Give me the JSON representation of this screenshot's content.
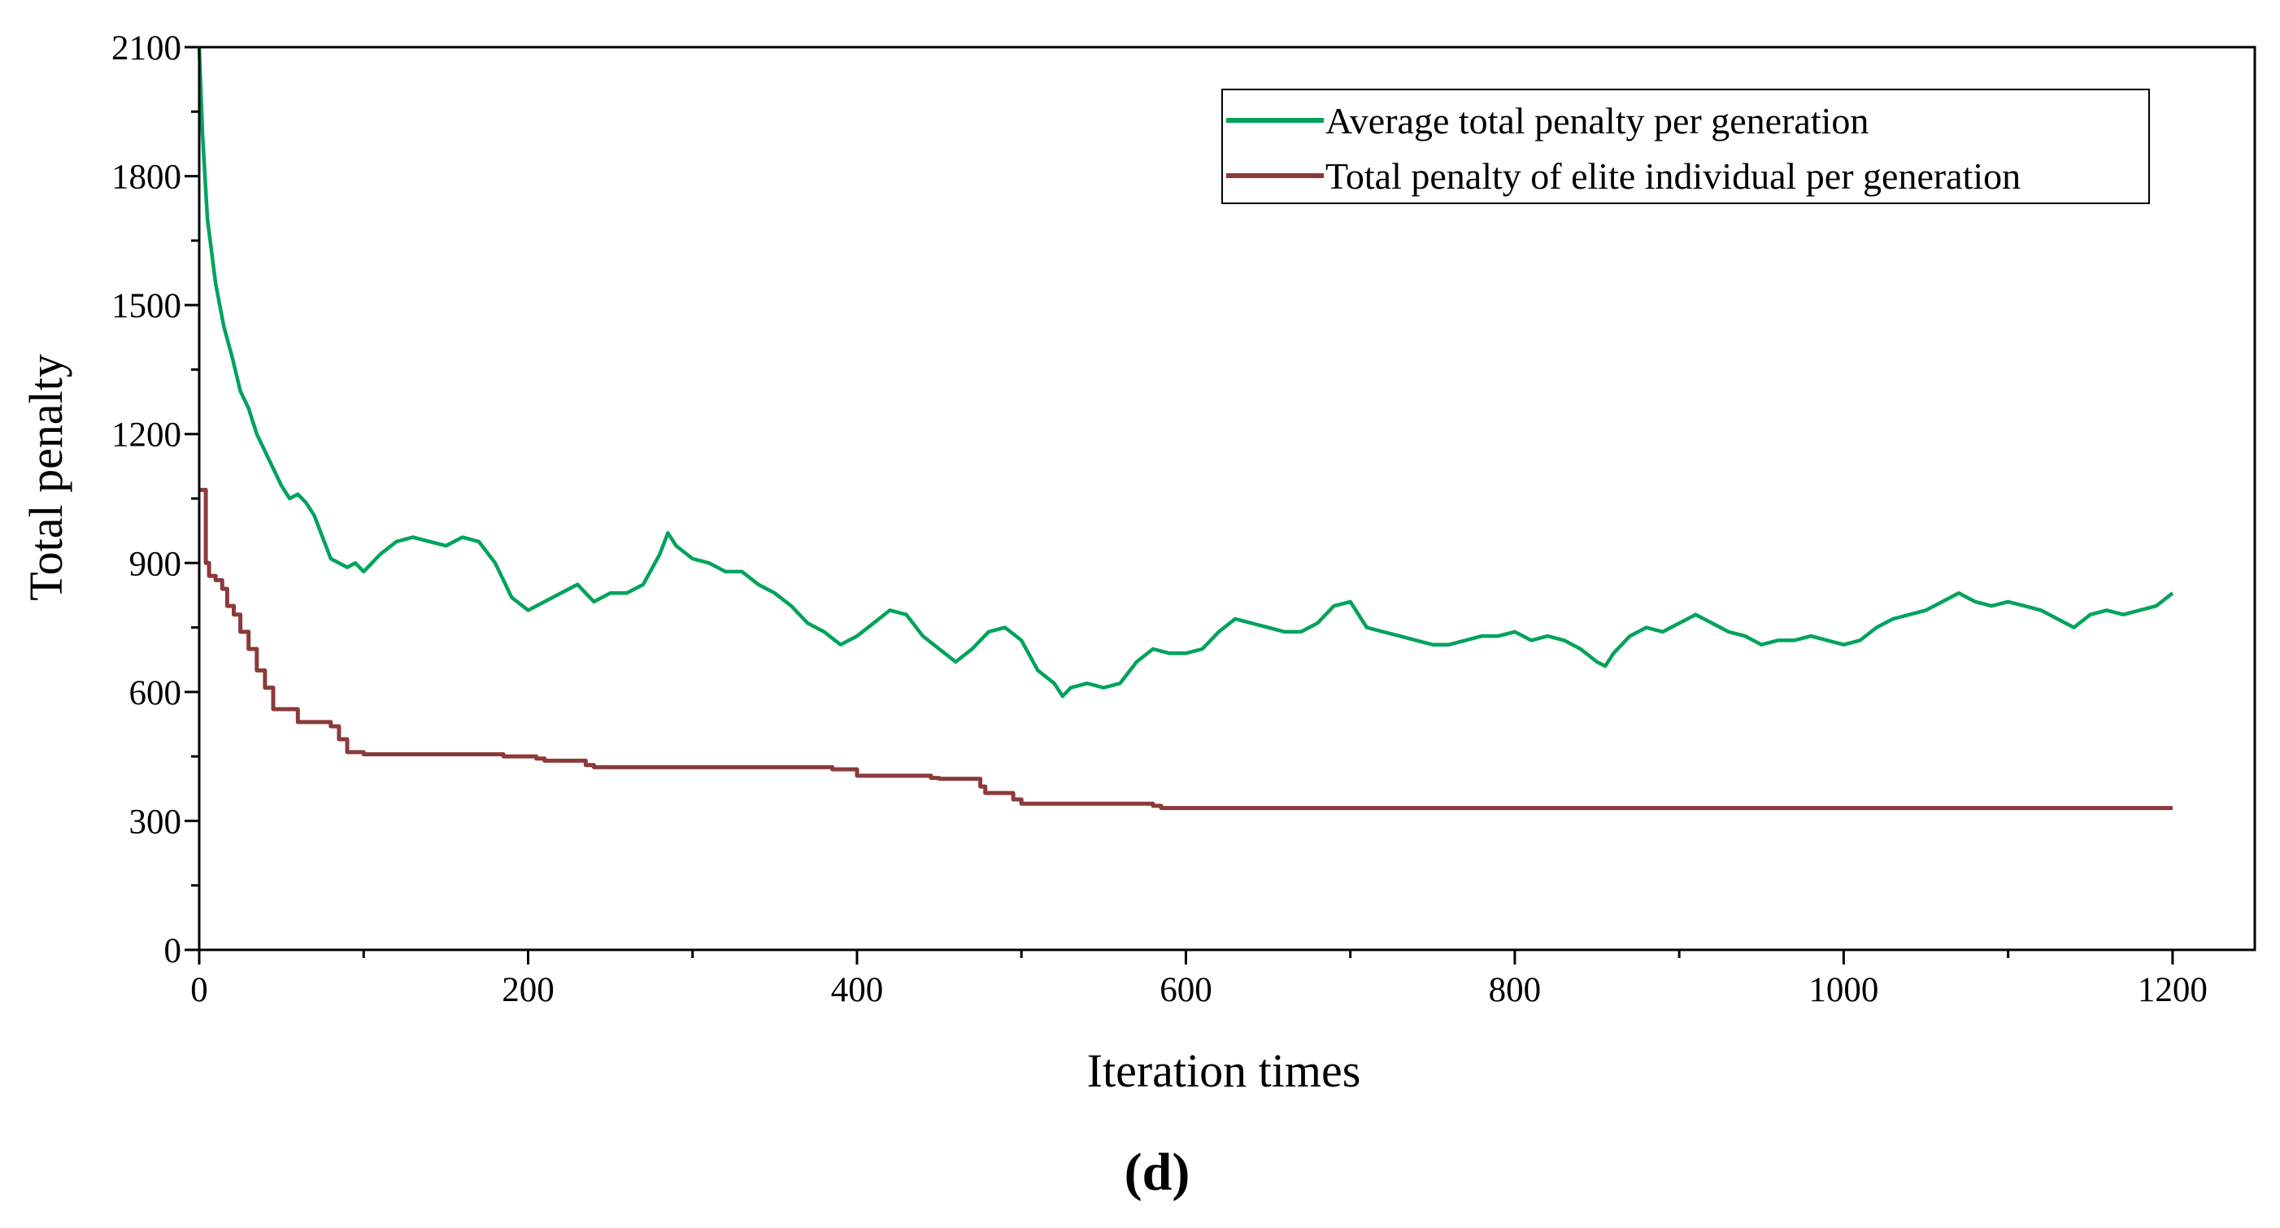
{
  "panel_label": "(d)",
  "chart_data": {
    "type": "line",
    "title": "",
    "xlabel": "Iteration times",
    "ylabel": "Total penalty",
    "xlim": [
      0,
      1250
    ],
    "ylim": [
      0,
      2100
    ],
    "xticks": [
      0,
      200,
      400,
      600,
      800,
      1000,
      1200
    ],
    "yticks": [
      0,
      300,
      600,
      900,
      1200,
      1500,
      1800,
      2100
    ],
    "xtick_labels": [
      "0",
      "200",
      "400",
      "600",
      "800",
      "1000",
      "1200"
    ],
    "ytick_labels": [
      "0",
      "300",
      "600",
      "900",
      "1200",
      "1500",
      "1800",
      "2100"
    ],
    "legend_position": "top-right",
    "series": [
      {
        "name": "Average total penalty per generation",
        "color": "#00a35c",
        "x": [
          0,
          2,
          5,
          10,
          15,
          20,
          25,
          30,
          35,
          40,
          45,
          50,
          55,
          60,
          65,
          70,
          75,
          80,
          85,
          90,
          95,
          100,
          110,
          120,
          130,
          140,
          150,
          160,
          170,
          180,
          190,
          200,
          210,
          220,
          230,
          240,
          250,
          260,
          270,
          280,
          285,
          290,
          300,
          310,
          320,
          330,
          340,
          350,
          360,
          370,
          380,
          390,
          400,
          410,
          420,
          430,
          440,
          450,
          460,
          470,
          480,
          490,
          500,
          510,
          520,
          525,
          530,
          540,
          550,
          560,
          570,
          580,
          590,
          600,
          610,
          620,
          630,
          640,
          650,
          660,
          670,
          680,
          690,
          700,
          710,
          720,
          730,
          740,
          750,
          760,
          770,
          780,
          790,
          800,
          810,
          820,
          830,
          840,
          850,
          855,
          860,
          870,
          880,
          890,
          900,
          910,
          920,
          930,
          940,
          950,
          960,
          970,
          980,
          990,
          1000,
          1010,
          1020,
          1030,
          1040,
          1050,
          1060,
          1070,
          1080,
          1090,
          1100,
          1110,
          1120,
          1130,
          1140,
          1150,
          1160,
          1170,
          1180,
          1190,
          1200
        ],
        "y": [
          2100,
          1900,
          1700,
          1550,
          1450,
          1380,
          1300,
          1260,
          1200,
          1160,
          1120,
          1080,
          1050,
          1060,
          1040,
          1010,
          960,
          910,
          900,
          890,
          900,
          880,
          920,
          950,
          960,
          950,
          940,
          960,
          950,
          900,
          820,
          790,
          810,
          830,
          850,
          810,
          830,
          830,
          850,
          920,
          970,
          940,
          910,
          900,
          880,
          880,
          850,
          830,
          800,
          760,
          740,
          710,
          730,
          760,
          790,
          780,
          730,
          700,
          670,
          700,
          740,
          750,
          720,
          650,
          620,
          590,
          610,
          620,
          610,
          620,
          670,
          700,
          690,
          690,
          700,
          740,
          770,
          760,
          750,
          740,
          740,
          760,
          800,
          810,
          750,
          740,
          730,
          720,
          710,
          710,
          720,
          730,
          730,
          740,
          720,
          730,
          720,
          700,
          670,
          660,
          690,
          730,
          750,
          740,
          760,
          780,
          760,
          740,
          730,
          710,
          720,
          720,
          730,
          720,
          710,
          720,
          750,
          770,
          780,
          790,
          810,
          830,
          810,
          800,
          810,
          800,
          790,
          770,
          750,
          780,
          790,
          780,
          790,
          800,
          830
        ]
      },
      {
        "name": "Total penalty of elite individual per generation",
        "color": "#8b3a3a",
        "x": [
          0,
          2,
          4,
          6,
          10,
          14,
          17,
          21,
          25,
          30,
          35,
          40,
          45,
          55,
          60,
          80,
          85,
          90,
          100,
          180,
          185,
          205,
          210,
          235,
          240,
          385,
          400,
          445,
          450,
          475,
          478,
          495,
          500,
          580,
          585,
          1200
        ],
        "y": [
          1070,
          1070,
          900,
          870,
          860,
          840,
          800,
          780,
          740,
          700,
          650,
          610,
          560,
          560,
          530,
          520,
          490,
          460,
          455,
          455,
          450,
          445,
          440,
          430,
          425,
          420,
          405,
          400,
          398,
          380,
          365,
          350,
          340,
          335,
          330,
          330
        ]
      }
    ]
  }
}
